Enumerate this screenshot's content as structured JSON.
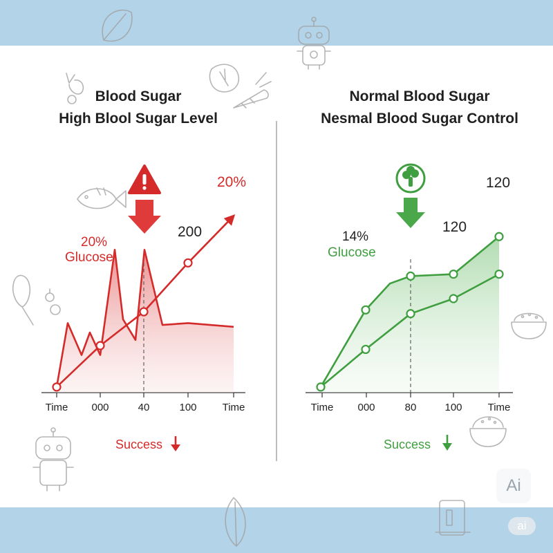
{
  "left_panel": {
    "title_line1": "Blood Sugar",
    "title_line2": "High Blool Sugar Level",
    "success_label": "Success"
  },
  "right_panel": {
    "title_line1": "Normal Blood Sugar",
    "title_line2": "Nesmal Blood Sugar Control",
    "success_label": "Success"
  },
  "badges": {
    "ai_badge": "Ai",
    "ai_pill": "ai"
  },
  "colors": {
    "high_accent": "#d42a2a",
    "normal_accent": "#3f9e3f",
    "band": "#b3d3e8"
  },
  "icons": [
    "warning-icon",
    "down-arrow-icon",
    "broccoli-icon",
    "robot-icon",
    "fish-icon",
    "vegetable-icon",
    "rice-bowl-icon"
  ],
  "chart_data": [
    {
      "type": "line",
      "title": "High Blool Sugar Level",
      "x_ticks": [
        "Time",
        "000",
        "40",
        "100",
        "Time"
      ],
      "grid": false,
      "series": [
        {
          "values": [
            0.03,
            0.37,
            0.2,
            0.32,
            0.2,
            0.76,
            0.39,
            0.28,
            0.76,
            0.36,
            0.37,
            0.35
          ]
        },
        {
          "values": [
            0.03,
            0.25,
            0.43,
            0.69,
            0.94
          ]
        }
      ],
      "annotations": [
        "20%",
        "20%",
        "Glucose",
        "200"
      ]
    },
    {
      "type": "line",
      "title": "Nesmal Blood Sugar Control",
      "x_ticks": [
        "Time",
        "000",
        "80",
        "100",
        "Time"
      ],
      "grid": false,
      "series": [
        {
          "values": [
            0.03,
            0.44,
            0.58,
            0.62,
            0.63,
            0.83
          ]
        },
        {
          "values": [
            0.03,
            0.23,
            0.42,
            0.5,
            0.63
          ]
        }
      ],
      "annotations": [
        "14%",
        "Glucose",
        "120",
        "120"
      ]
    }
  ]
}
